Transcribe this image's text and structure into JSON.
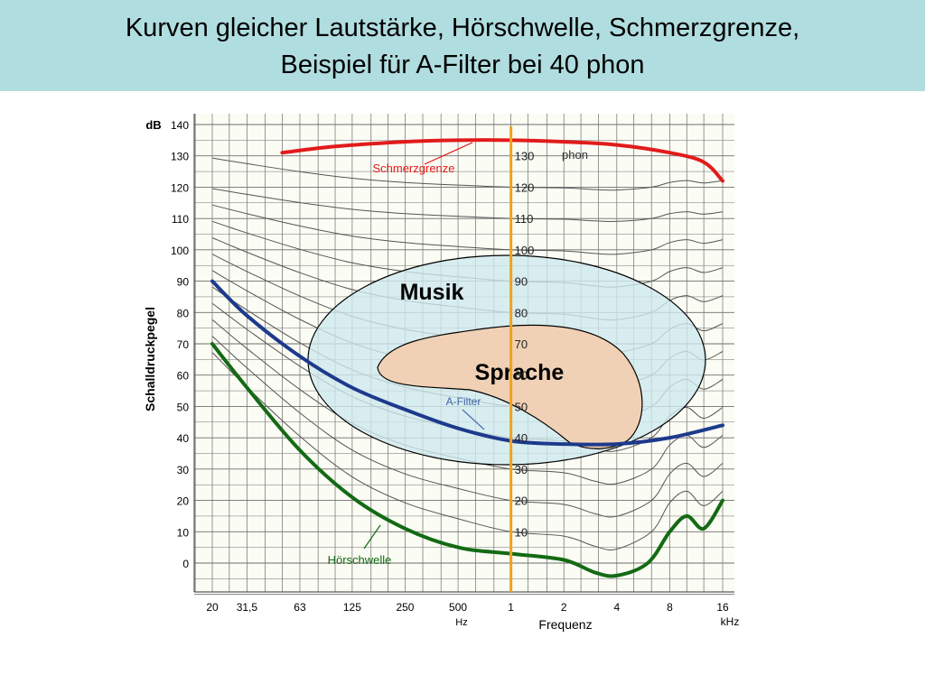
{
  "slide": {
    "title_line1": "Kurven gleicher Lautstärke, Hörschwelle, Schmerzgrenze,",
    "title_line2": "Beispiel für A-Filter bei 40 phon"
  },
  "colors": {
    "header_bg": "#b0dde0",
    "grid": "#6e6e6e",
    "phon_curves": "#555555",
    "schmerzgrenze": "#e21b1b",
    "hoerschwelle": "#136a13",
    "a_filter": "#1d3a8c",
    "one_khz_line": "#f0a21a",
    "musik_fill": "#cfe9ee",
    "sprache_fill": "#f3ceb0"
  },
  "chart_data": {
    "type": "line",
    "ylabel": "Schalldruckpegel",
    "y_unit": "dB",
    "xlabel": "Frequenz",
    "x_unit_hz": "Hz",
    "x_unit_khz": "kHz",
    "x_scale": "log",
    "ylim": [
      -10,
      140
    ],
    "grid": true,
    "y_ticks": [
      "0",
      "10",
      "20",
      "30",
      "40",
      "50",
      "60",
      "70",
      "80",
      "90",
      "100",
      "110",
      "120",
      "130",
      "140"
    ],
    "x_ticks": [
      {
        "f": 20,
        "label": "20"
      },
      {
        "f": 31.5,
        "label": "31,5"
      },
      {
        "f": 63,
        "label": "63"
      },
      {
        "f": 125,
        "label": "125"
      },
      {
        "f": 250,
        "label": "250"
      },
      {
        "f": 500,
        "label": "500"
      },
      {
        "f": 1000,
        "label": "1"
      },
      {
        "f": 2000,
        "label": "2"
      },
      {
        "f": 4000,
        "label": "4"
      },
      {
        "f": 8000,
        "label": "8"
      },
      {
        "f": 16000,
        "label": "16"
      }
    ],
    "phon_levels": [
      10,
      20,
      30,
      40,
      50,
      60,
      70,
      80,
      90,
      100,
      110,
      120
    ],
    "phon_labels": [
      "10",
      "20",
      "30",
      "40",
      "50",
      "60",
      "70",
      "80",
      "90",
      "100",
      "110",
      "120",
      "130"
    ],
    "phon_unit": "phon",
    "series": [
      {
        "name": "Schmerzgrenze",
        "x": [
          50,
          100,
          250,
          500,
          1000,
          2000,
          4000,
          8000,
          12500,
          16000
        ],
        "y": [
          131,
          133,
          134.5,
          135,
          135,
          134.5,
          133.5,
          131,
          128,
          122
        ]
      },
      {
        "name": "Hörschwelle",
        "x": [
          20,
          31.5,
          63,
          125,
          250,
          500,
          1000,
          2000,
          3000,
          4000,
          6000,
          8000,
          10000,
          12500,
          16000
        ],
        "y": [
          70,
          56,
          36,
          21,
          11,
          5,
          3,
          1,
          -3,
          -4,
          0,
          10,
          15,
          11,
          20
        ]
      },
      {
        "name": "A-Filter",
        "x": [
          20,
          31.5,
          63,
          125,
          250,
          500,
          1000,
          2000,
          4000,
          8000,
          16000
        ],
        "y": [
          90,
          79,
          66,
          56,
          49,
          43,
          39,
          38,
          38,
          40,
          44
        ]
      }
    ],
    "regions": [
      {
        "name": "Musik"
      },
      {
        "name": "Sprache"
      }
    ]
  }
}
